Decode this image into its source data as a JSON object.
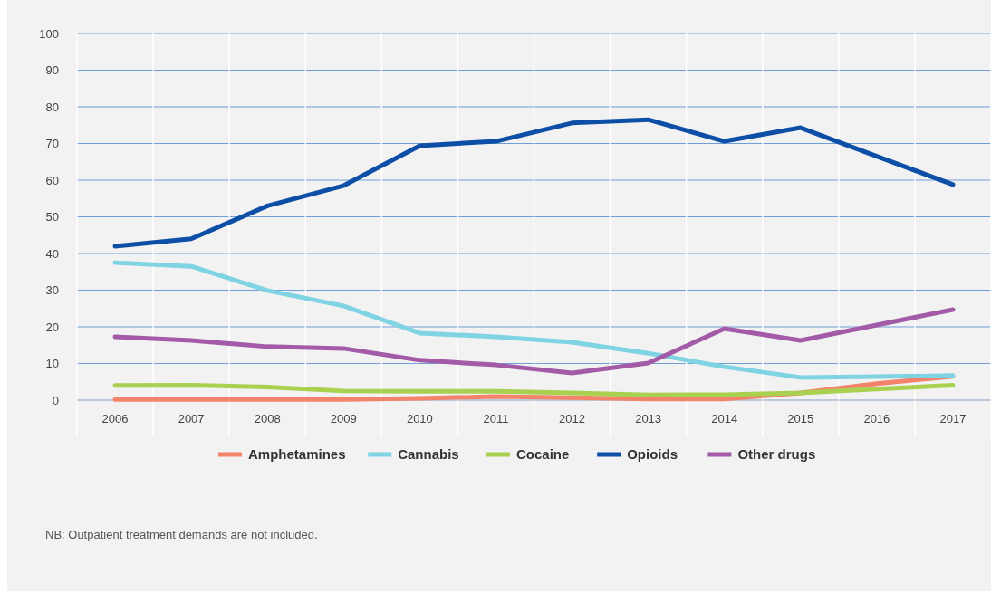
{
  "chart_data": {
    "type": "line",
    "categories": [
      "2006",
      "2007",
      "2008",
      "2009",
      "2010",
      "2011",
      "2012",
      "2013",
      "2014",
      "2015",
      "2016",
      "2017"
    ],
    "series": [
      {
        "name": "Amphetamines",
        "color": "#f4836b",
        "values": [
          0.2,
          0.2,
          0.2,
          0.2,
          0.5,
          1,
          0.7,
          0.3,
          0.3,
          2,
          4.5,
          6.5
        ]
      },
      {
        "name": "Cannabis",
        "color": "#7fd3e2",
        "values": [
          37.5,
          36.5,
          29.9,
          25.7,
          18.3,
          17.3,
          15.8,
          12.8,
          9.1,
          6.2,
          6.4,
          6.7
        ]
      },
      {
        "name": "Cocaine",
        "color": "#a9d04f",
        "values": [
          4,
          4.1,
          3.6,
          2.5,
          2.4,
          2.4,
          2,
          1.4,
          1.5,
          2,
          3,
          4.1
        ]
      },
      {
        "name": "Opioids",
        "color": "#0d4ea6",
        "values": [
          42,
          44,
          53,
          58.5,
          69.4,
          70.6,
          75.6,
          76.5,
          70.6,
          74.3,
          66.5,
          58.8
        ]
      },
      {
        "name": "Other drugs",
        "color": "#a35ba8",
        "values": [
          17.3,
          16.3,
          14.6,
          14.1,
          10.9,
          9.6,
          7.4,
          10.1,
          19.5,
          16.3,
          20.5,
          24.7
        ]
      }
    ],
    "ylim": [
      0,
      100
    ],
    "yticks": [
      0,
      10,
      20,
      30,
      40,
      50,
      60,
      70,
      80,
      90,
      100
    ],
    "grid": "y",
    "legend": "bottom",
    "marker": "none",
    "line_style": "solid",
    "annotations": [
      "NB: Outpatient treatment demands are not included."
    ]
  }
}
